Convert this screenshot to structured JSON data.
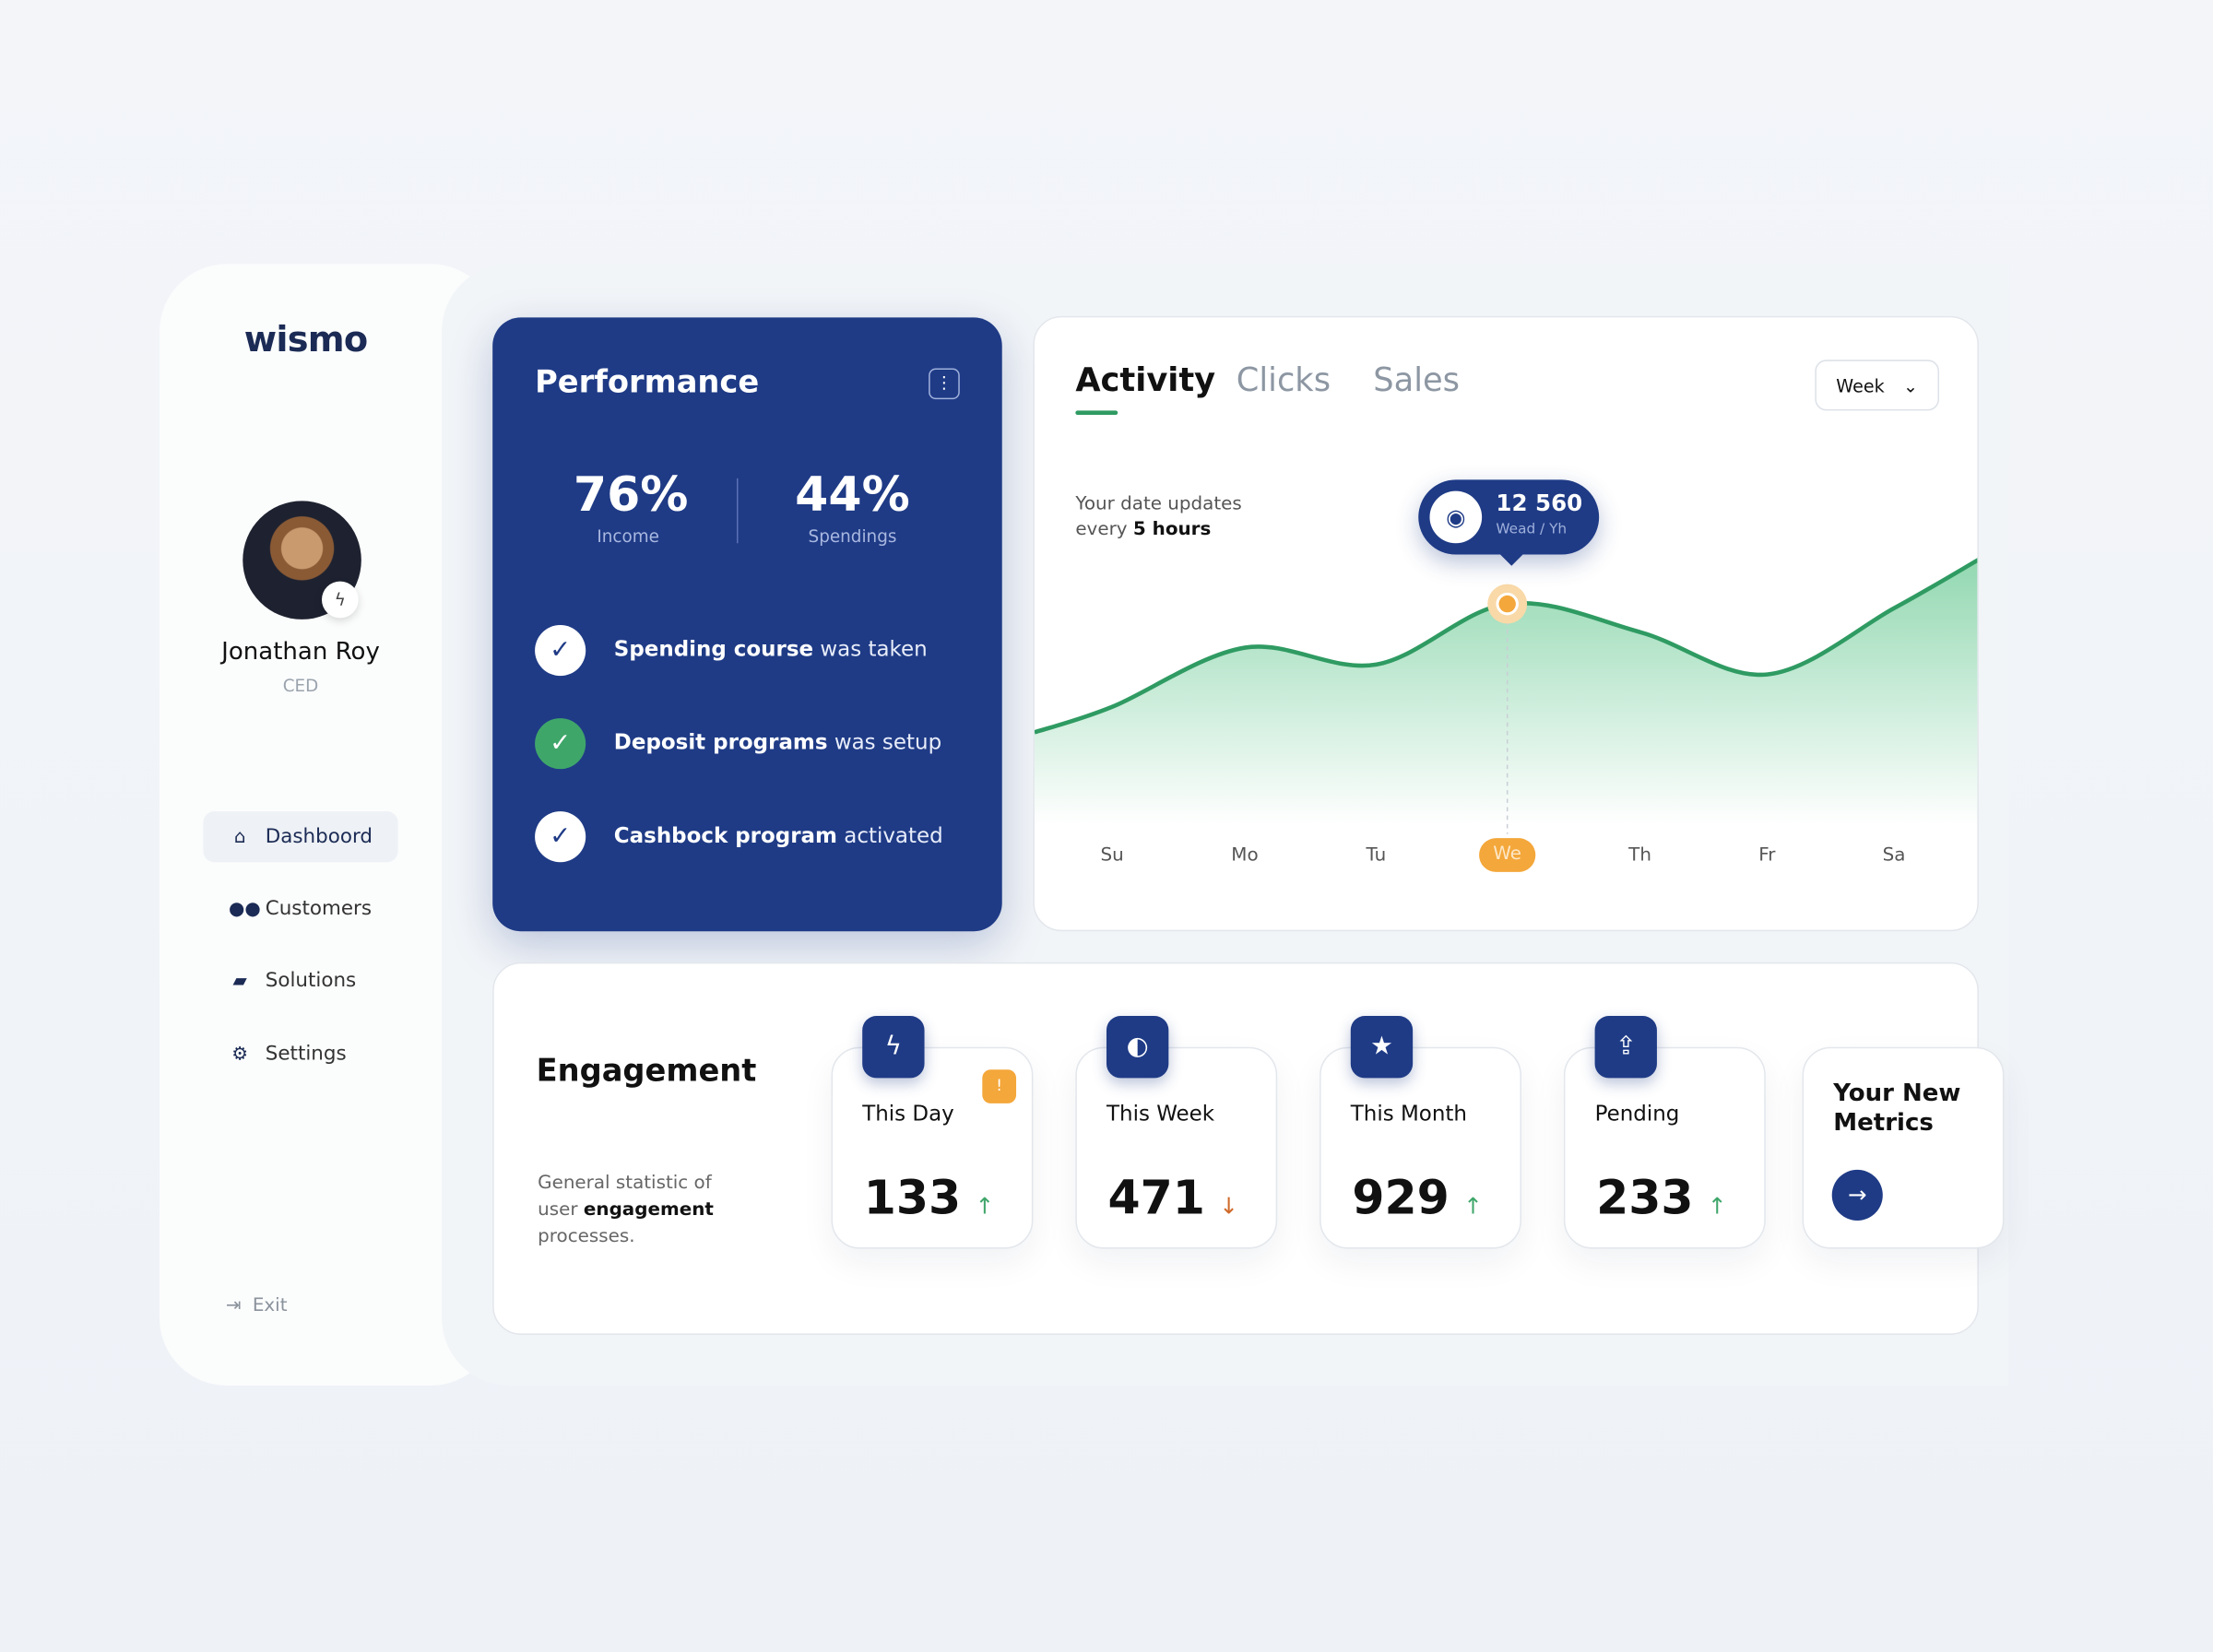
{
  "brand": {
    "logo": "wismo"
  },
  "user": {
    "name": "Jonathan Roy",
    "role": "CED",
    "badge_icon": "bolt-icon"
  },
  "sidebar": {
    "items": [
      {
        "label": "Dashboord",
        "icon": "home-icon",
        "active": true
      },
      {
        "label": "Customers",
        "icon": "users-icon"
      },
      {
        "label": "Solutions",
        "icon": "graduation-cap-icon"
      },
      {
        "label": "Settings",
        "icon": "gear-icon"
      }
    ],
    "exit_label": "Exit"
  },
  "performance": {
    "title": "Performance",
    "menu_icon": "kebab-icon",
    "income": {
      "value": "76%",
      "label": "Income"
    },
    "spendings": {
      "value": "44%",
      "label": "Spendings"
    },
    "checks": [
      {
        "bold": "Spending course",
        "rest": " was taken",
        "style": "white"
      },
      {
        "bold": "Deposit programs",
        "rest": " was setup",
        "style": "green"
      },
      {
        "bold": "Cashbock program",
        "rest": " activated",
        "style": "white"
      }
    ]
  },
  "activity": {
    "tabs": [
      {
        "label": "Activity",
        "active": true
      },
      {
        "label": "Clicks"
      },
      {
        "label": "Sales"
      }
    ],
    "range": "Week",
    "update_text": "Your date updates",
    "update_every": "every ",
    "update_bold": "5 hours",
    "tooltip": {
      "value": "12 560",
      "sub": "Wead / Yh",
      "icon": "eye-icon"
    },
    "selected_day": "We"
  },
  "chart_data": {
    "type": "area",
    "categories": [
      "Su",
      "Mo",
      "Tu",
      "We",
      "Th",
      "Fr",
      "Sa"
    ],
    "values": [
      6570,
      10015,
      9030,
      12560,
      10920,
      8455,
      12310
    ],
    "highlight": {
      "category": "We",
      "value": 12560
    },
    "colors": {
      "line": "#2f9b62",
      "fill": "#7fd1a3",
      "marker": "#f4a73a"
    },
    "grid": false
  },
  "engagement": {
    "title": "Engagement",
    "desc_a": "General statistic of user ",
    "desc_b": "engagement",
    "desc_c": " processes.",
    "metrics": [
      {
        "label": "This Day",
        "value": "133",
        "trend": "up",
        "icon": "bolt-icon",
        "alert": "!"
      },
      {
        "label": "This Week",
        "value": "471",
        "trend": "down",
        "icon": "half-circle-icon"
      },
      {
        "label": "This Month",
        "value": "929",
        "trend": "up",
        "icon": "star-icon"
      },
      {
        "label": "Pending",
        "value": "233",
        "trend": "up",
        "icon": "upload-icon"
      }
    ],
    "new_metrics": "Your New Metrics",
    "arrows": {
      "up": "↑",
      "down": "↓"
    }
  },
  "colors": {
    "primary": "#1f3b86",
    "accent": "#2f9b62",
    "warning": "#f4a73a"
  }
}
